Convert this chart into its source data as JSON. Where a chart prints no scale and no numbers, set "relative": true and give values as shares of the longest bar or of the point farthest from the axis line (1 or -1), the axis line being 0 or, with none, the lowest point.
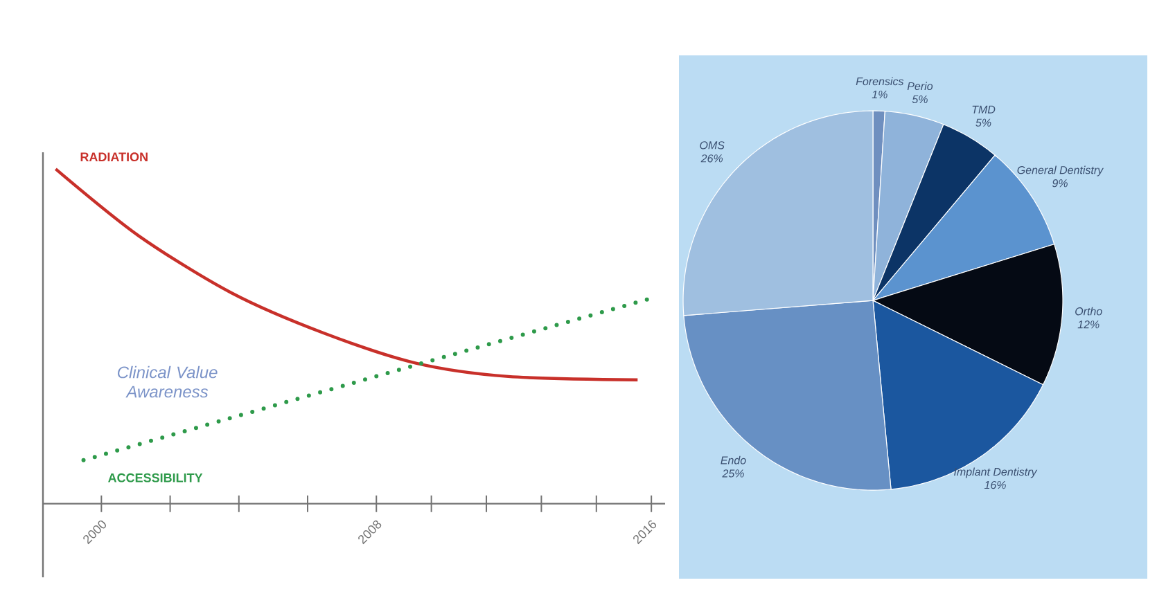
{
  "chart_data": [
    {
      "type": "line",
      "relative": true,
      "xlim": [
        1998.3,
        2016.4
      ],
      "xticks": [
        {
          "value": 2000,
          "label": "2000"
        },
        {
          "value": 2002,
          "label": null
        },
        {
          "value": 2004,
          "label": null
        },
        {
          "value": 2006,
          "label": null
        },
        {
          "value": 2008,
          "label": "2008"
        },
        {
          "value": 2009.6,
          "label": null
        },
        {
          "value": 2011.2,
          "label": null
        },
        {
          "value": 2012.8,
          "label": null
        },
        {
          "value": 2014.4,
          "label": null
        },
        {
          "value": 2016,
          "label": "2016"
        }
      ],
      "series": [
        {
          "name": "RADIATION",
          "color": "#c8302a",
          "line_style": "solid",
          "x": [
            1998.67,
            2001.09,
            2003.78,
            2006.46,
            2009.15,
            2011.84,
            2015.6
          ],
          "values": [
            1.0,
            0.8,
            0.63,
            0.51,
            0.42,
            0.38,
            0.37
          ]
        },
        {
          "name": "ACCESSIBILITY",
          "color": "#2e9a4a",
          "line_style": "dotted",
          "x": [
            1999.48,
            2009.0,
            2015.87
          ],
          "values": [
            0.13,
            0.41,
            0.61
          ]
        }
      ],
      "annotations": [
        "Clinical Value Awareness"
      ]
    },
    {
      "type": "pie",
      "categories": [
        "Forensics",
        "Perio",
        "TMD",
        "General Dentistry",
        "Ortho",
        "Implant Dentistry",
        "Endo",
        "OMS"
      ],
      "values": [
        1,
        5,
        5,
        9,
        12,
        16,
        25,
        26
      ],
      "value_labels": [
        "1%",
        "5%",
        "5%",
        "9%",
        "12%",
        "16%",
        "25%",
        "26%"
      ],
      "colors": [
        "#6f8fbf",
        "#8fb3da",
        "#0c3466",
        "#5b93cf",
        "#050a14",
        "#1b579f",
        "#6790c4",
        "#9fbfe0"
      ]
    }
  ]
}
